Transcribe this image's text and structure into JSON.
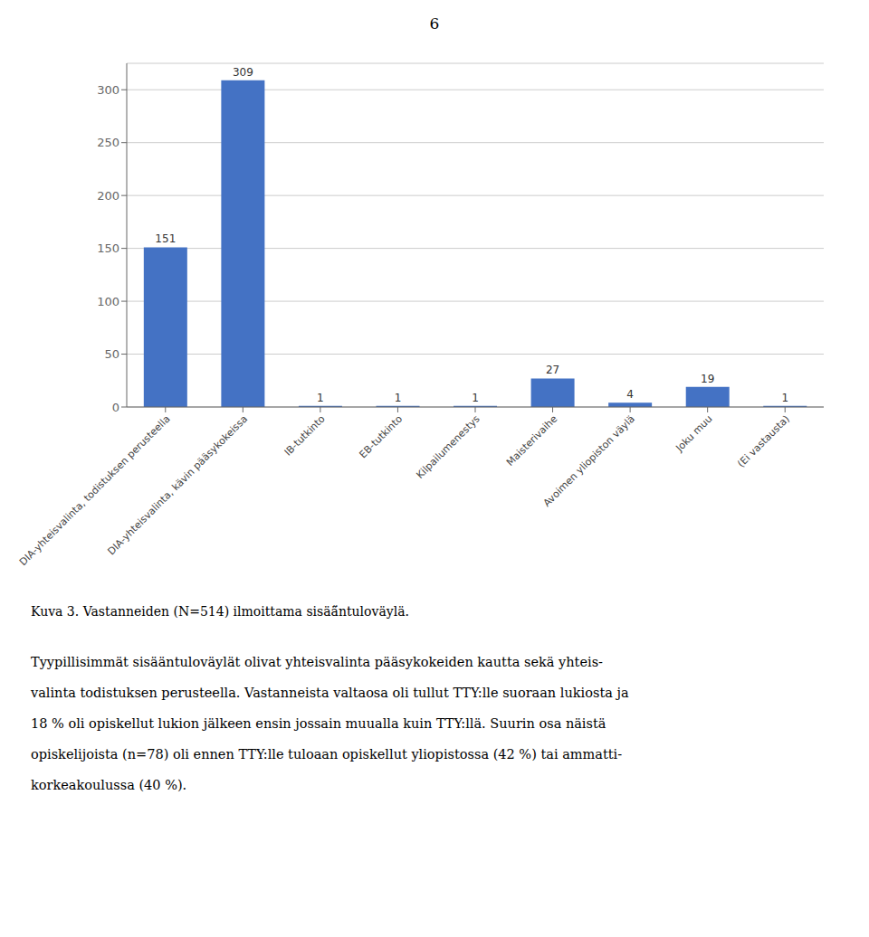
{
  "chart_data": {
    "type": "bar",
    "title": "Kuva 3. Vastanneiden (N=514) ilmoittama sisää̈ntuloväylä.",
    "annotations": [
      "6",
      "Tyypillisimmät sisääntuloväylät olivat yhteisvalinta pääsykokeiden kautta sekä yhteis-",
      "valinta todistuksen perusteella. Vastanneista valtaosa oli tullut TTY:lle suoraan lukiosta ja",
      "18 % oli opiskellut lukion jälkeen ensin jossain muualla kuin TTY:llä. Suurin osa näistä",
      "opiskelijoista (n=78) oli ennen TTY:lle tuloaan opiskellut yliopistossa (42 %) tai ammatti-",
      "korkeakoulussa (40 %)."
    ],
    "categories": [
      "DIA-yhteisvalinta, todistuksen perusteella",
      "DIA-yhteisvalinta, kävin pääsykokeissa",
      "IB-tutkinto",
      "EB-tutkinto",
      "Kilpailumenestys",
      "Maisterivaihe",
      "Avoimen yliopiston väylä",
      "Joku muu",
      "(Ei vastausta)"
    ],
    "values": [
      151,
      309,
      1,
      1,
      1,
      27,
      4,
      19,
      1
    ],
    "color": "#4472C4",
    "ylim": [
      0,
      325
    ],
    "yticks": [
      0,
      50,
      100,
      150,
      200,
      250,
      300
    ],
    "grid": true,
    "data_labels": true
  }
}
